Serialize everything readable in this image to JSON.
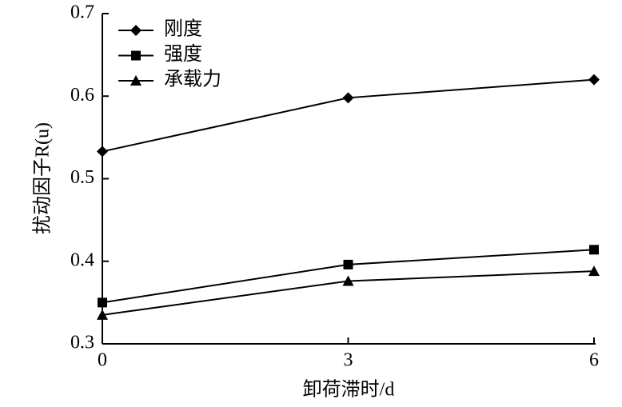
{
  "chart_data": {
    "type": "line",
    "xlabel": "卸荷滞时/d",
    "ylabel": "扰动因子R(u)",
    "x": [
      0,
      3,
      6
    ],
    "series": [
      {
        "name": "刚度",
        "color": "#000000",
        "marker": "diamond",
        "values": [
          0.533,
          0.598,
          0.62
        ]
      },
      {
        "name": "强度",
        "color": "#000000",
        "marker": "square",
        "values": [
          0.35,
          0.396,
          0.414
        ]
      },
      {
        "name": "承载力",
        "color": "#000000",
        "marker": "triangle",
        "values": [
          0.335,
          0.376,
          0.388
        ]
      }
    ],
    "xlim": [
      0,
      6
    ],
    "xticks": [
      0,
      3,
      6
    ],
    "ylim": [
      0.3,
      0.7
    ],
    "yticks": [
      0.3,
      0.4,
      0.5,
      0.6,
      0.7
    ],
    "grid": false,
    "legend": "upper left"
  }
}
